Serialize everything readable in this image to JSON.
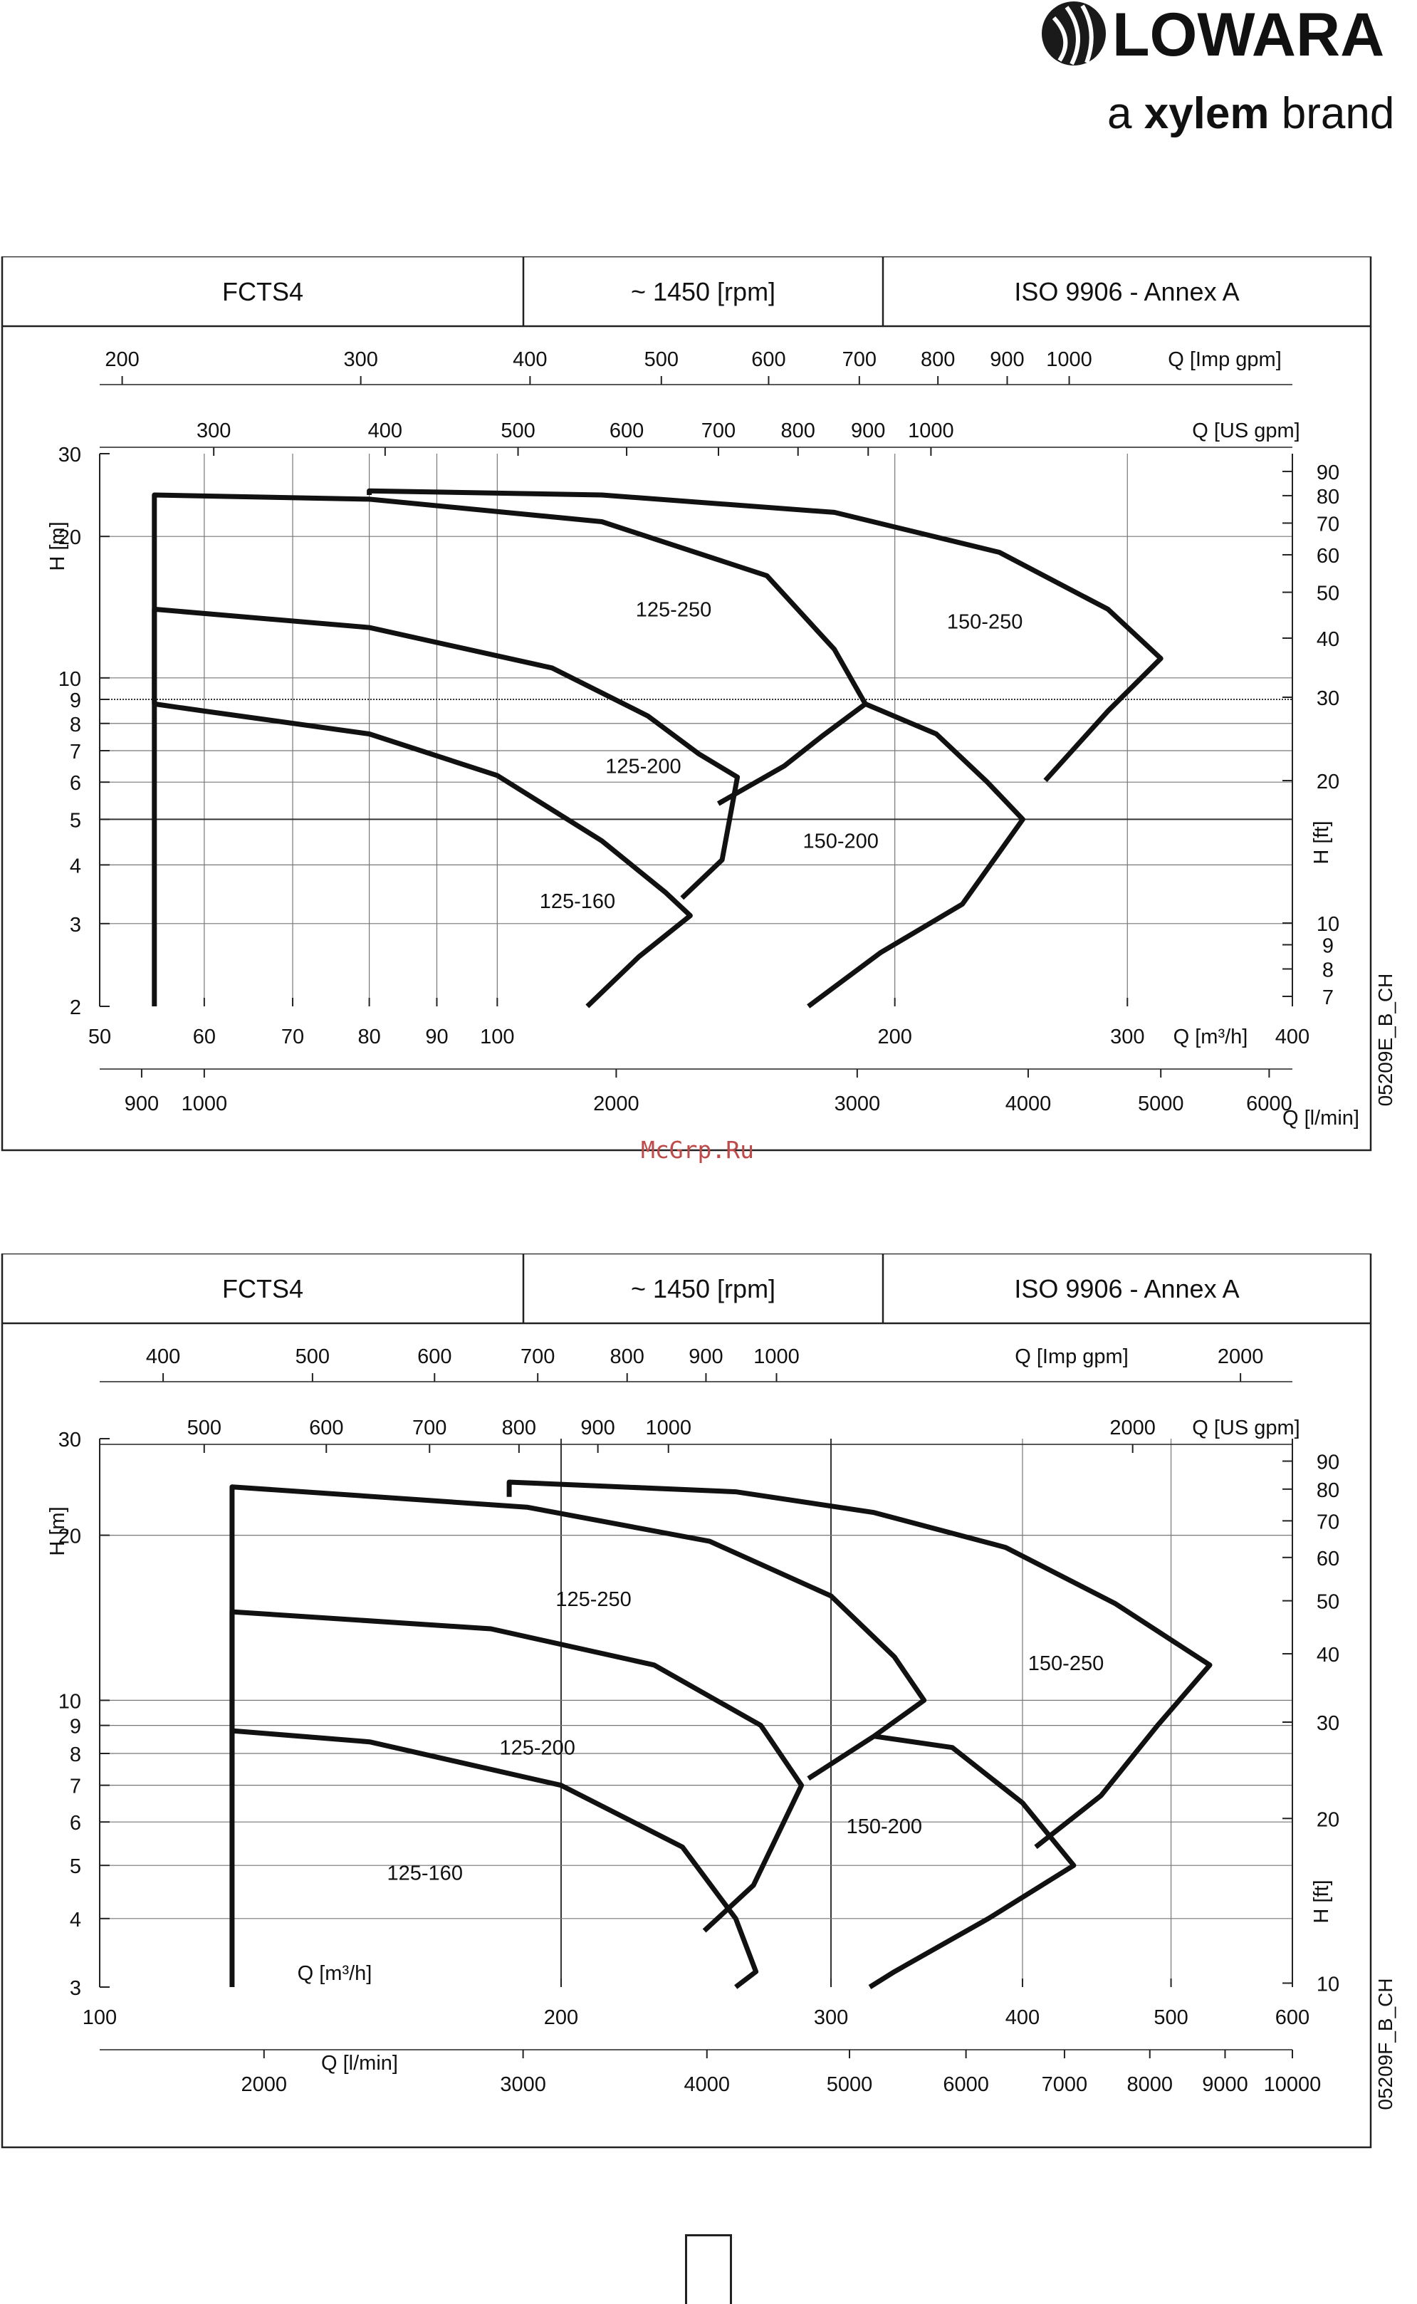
{
  "brand": {
    "name": "LOWARA",
    "tagline_prefix": "a ",
    "tagline_strong": "xylem",
    "tagline_suffix": " brand"
  },
  "watermark": "McGrp.Ru",
  "chart_data": [
    {
      "type": "line",
      "header": [
        "FCTS4",
        "~ 1450 [rpm]",
        "ISO 9906 - Annex A"
      ],
      "x_scale": "log",
      "xlim": [
        50,
        400
      ],
      "xlabel": "Q [m³/h]",
      "x_ticks": [
        "50",
        "60",
        "70",
        "80",
        "90",
        "100",
        "200",
        "300",
        "400"
      ],
      "ylim": [
        2,
        30
      ],
      "y_scale": "log",
      "ylabel": "H [m]",
      "y_ticks": [
        2,
        3,
        4,
        5,
        6,
        7,
        8,
        9,
        10,
        20,
        30
      ],
      "y2label": "H [ft]",
      "y2_ticks": [
        7,
        8,
        9,
        10,
        20,
        30,
        40,
        50,
        60,
        70,
        80,
        90
      ],
      "top_axis_imp": {
        "label": "Q [Imp gpm]",
        "ticks": [
          200,
          300,
          400,
          500,
          600,
          700,
          800,
          900,
          1000
        ]
      },
      "top_axis_us": {
        "label": "Q [US gpm]",
        "ticks": [
          300,
          400,
          500,
          600,
          700,
          800,
          900,
          1000
        ]
      },
      "bottom_axis_lmin": {
        "label": "Q [l/min]",
        "ticks": [
          900,
          1000,
          2000,
          3000,
          4000,
          5000,
          6000
        ]
      },
      "code": "05209E_B_CH",
      "series": [
        {
          "name": "125-160",
          "points": [
            [
              55,
              2
            ],
            [
              55,
              8.8
            ],
            [
              60,
              8.5
            ],
            [
              80,
              7.6
            ],
            [
              100,
              6.2
            ],
            [
              120,
              4.5
            ],
            [
              134,
              3.5
            ],
            [
              140,
              3.12
            ],
            [
              128,
              2.55
            ],
            [
              117,
              2
            ]
          ]
        },
        {
          "name": "125-200",
          "points": [
            [
              55,
              8.8
            ],
            [
              55,
              14
            ],
            [
              80,
              12.8
            ],
            [
              110,
              10.5
            ],
            [
              130,
              8.3
            ],
            [
              142,
              6.9
            ],
            [
              152,
              6.15
            ],
            [
              148,
              4.1
            ],
            [
              138,
              3.4
            ]
          ]
        },
        {
          "name": "125-250",
          "points": [
            [
              55,
              8.8
            ],
            [
              55,
              24.5
            ],
            [
              80,
              24
            ],
            [
              120,
              21.5
            ],
            [
              160,
              16.5
            ],
            [
              180,
              11.5
            ],
            [
              190,
              8.8
            ],
            [
              176,
              7.5
            ],
            [
              165,
              6.5
            ],
            [
              147,
              5.4
            ]
          ]
        },
        {
          "name": "150-200",
          "points": [
            [
              190,
              8.8
            ],
            [
              215,
              7.6
            ],
            [
              235,
              6
            ],
            [
              250,
              5
            ],
            [
              225,
              3.3
            ],
            [
              195,
              2.6
            ],
            [
              172,
              2
            ]
          ]
        },
        {
          "name": "150-250",
          "points": [
            [
              80,
              24.5
            ],
            [
              80,
              25
            ],
            [
              120,
              24.5
            ],
            [
              180,
              22.5
            ],
            [
              240,
              18.5
            ],
            [
              290,
              14
            ],
            [
              318,
              11
            ],
            [
              290,
              8.5
            ],
            [
              260,
              6.05
            ]
          ]
        }
      ],
      "series_labels": [
        {
          "text": "125-160",
          "x": 115,
          "y": 3.35
        },
        {
          "text": "125-200",
          "x": 129,
          "y": 6.5
        },
        {
          "text": "125-250",
          "x": 136,
          "y": 14
        },
        {
          "text": "150-200",
          "x": 182,
          "y": 4.5
        },
        {
          "text": "150-250",
          "x": 234,
          "y": 13.2
        }
      ]
    },
    {
      "type": "line",
      "header": [
        "FCTS4",
        "~ 1450 [rpm]",
        "ISO 9906 - Annex A"
      ],
      "x_scale": "log",
      "xlim": [
        100,
        600
      ],
      "xlabel": "Q [m³/h]",
      "x_ticks": [
        "100",
        "200",
        "300",
        "400",
        "500",
        "600"
      ],
      "ylim": [
        3,
        30
      ],
      "y_scale": "log",
      "ylabel": "H [m]",
      "y_ticks": [
        3,
        4,
        5,
        6,
        7,
        8,
        9,
        10,
        20,
        30
      ],
      "y2label": "H [ft]",
      "y2_ticks": [
        10,
        20,
        30,
        40,
        50,
        60,
        70,
        80,
        90
      ],
      "top_axis_imp": {
        "label": "Q [Imp gpm]",
        "ticks": [
          400,
          500,
          600,
          700,
          800,
          900,
          1000,
          2000
        ]
      },
      "top_axis_us": {
        "label": "Q [US gpm]",
        "ticks": [
          500,
          600,
          700,
          800,
          900,
          1000,
          2000
        ]
      },
      "bottom_axis_lmin": {
        "label": "Q [l/min]",
        "ticks": [
          2000,
          3000,
          4000,
          5000,
          6000,
          7000,
          8000,
          9000,
          10000
        ]
      },
      "code": "05209F_B_CH",
      "series": [
        {
          "name": "125-160",
          "points": [
            [
              122,
              3
            ],
            [
              122,
              8.8
            ],
            [
              150,
              8.4
            ],
            [
              200,
              7
            ],
            [
              240,
              5.4
            ],
            [
              260,
              4
            ],
            [
              268,
              3.2
            ],
            [
              260,
              3
            ]
          ]
        },
        {
          "name": "125-200",
          "points": [
            [
              122,
              8.8
            ],
            [
              122,
              14.5
            ],
            [
              180,
              13.5
            ],
            [
              230,
              11.6
            ],
            [
              270,
              9
            ],
            [
              287,
              7
            ],
            [
              267,
              4.6
            ],
            [
              248,
              3.8
            ]
          ]
        },
        {
          "name": "125-250",
          "points": [
            [
              122,
              7
            ],
            [
              122,
              24.5
            ],
            [
              190,
              22.5
            ],
            [
              250,
              19.5
            ],
            [
              300,
              15.5
            ],
            [
              330,
              12
            ],
            [
              345,
              10
            ],
            [
              320,
              8.6
            ],
            [
              290,
              7.2
            ]
          ]
        },
        {
          "name": "150-200",
          "points": [
            [
              320,
              8.6
            ],
            [
              360,
              8.2
            ],
            [
              400,
              6.5
            ],
            [
              432,
              5
            ],
            [
              380,
              4
            ],
            [
              330,
              3.2
            ],
            [
              318,
              3
            ]
          ]
        },
        {
          "name": "150-250",
          "points": [
            [
              185,
              23.5
            ],
            [
              185,
              25
            ],
            [
              260,
              24
            ],
            [
              320,
              22
            ],
            [
              390,
              19
            ],
            [
              460,
              15
            ],
            [
              530,
              11.6
            ],
            [
              490,
              9
            ],
            [
              450,
              6.7
            ],
            [
              408,
              5.4
            ]
          ]
        }
      ],
      "series_labels": [
        {
          "text": "125-160",
          "x": 163,
          "y": 4.85
        },
        {
          "text": "125-200",
          "x": 193,
          "y": 8.2
        },
        {
          "text": "125-250",
          "x": 210,
          "y": 15.3
        },
        {
          "text": "150-200",
          "x": 325,
          "y": 5.9
        },
        {
          "text": "150-250",
          "x": 427,
          "y": 11.7
        }
      ]
    }
  ]
}
